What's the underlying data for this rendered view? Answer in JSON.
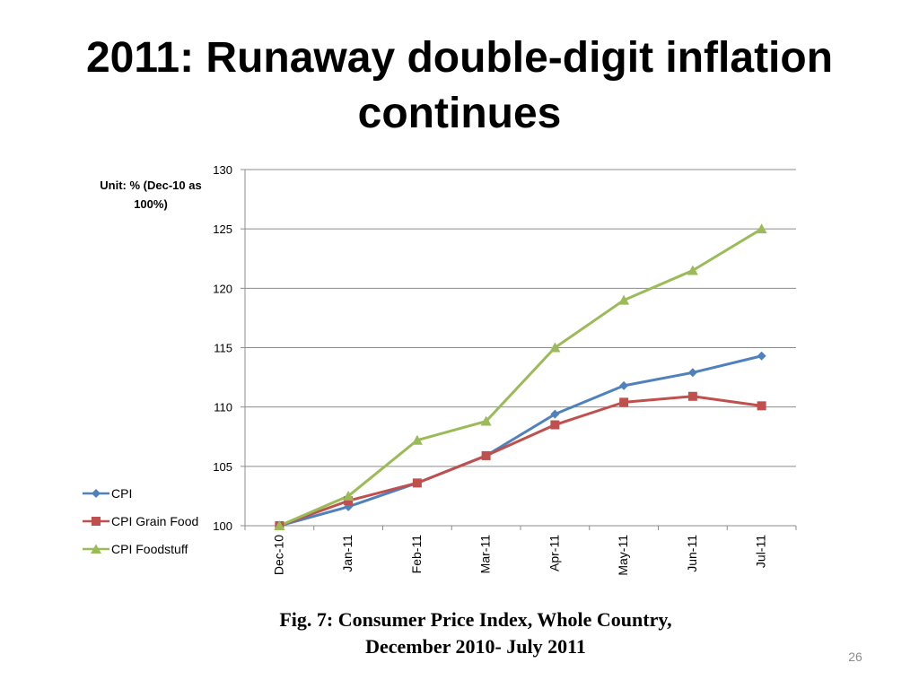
{
  "slide": {
    "title": "2011: Runaway double-digit inflation continues",
    "caption_line1": "Fig. 7: Consumer Price Index, Whole Country,",
    "caption_line2": "December 2010- July 2011",
    "page_number": "26"
  },
  "chart_data": {
    "type": "line",
    "title": "",
    "unit_label": "Unit: % (Dec-10 as 100%)",
    "unit_label_line1": "Unit: % (Dec-10 as",
    "unit_label_line2": "100%)",
    "xlabel": "",
    "ylabel": "",
    "categories": [
      "Dec-10",
      "Jan-11",
      "Feb-11",
      "Mar-11",
      "Apr-11",
      "May-11",
      "Jun-11",
      "Jul-11"
    ],
    "ylim": [
      100,
      130
    ],
    "yticks": [
      100,
      105,
      110,
      115,
      120,
      125,
      130
    ],
    "grid": true,
    "legend_position": "left",
    "series": [
      {
        "name": "CPI",
        "color": "#4f81bd",
        "marker": "diamond",
        "values": [
          100,
          101.6,
          103.6,
          105.9,
          109.4,
          111.8,
          112.9,
          114.3
        ]
      },
      {
        "name": "CPI Grain Food",
        "color": "#c0504d",
        "marker": "square",
        "values": [
          100,
          102.1,
          103.6,
          105.9,
          108.5,
          110.4,
          110.9,
          110.1
        ]
      },
      {
        "name": "CPI Foodstuff",
        "color": "#9bbb59",
        "marker": "triangle",
        "values": [
          100,
          102.5,
          107.2,
          108.8,
          115.0,
          119.0,
          121.5,
          125.0
        ]
      }
    ]
  }
}
